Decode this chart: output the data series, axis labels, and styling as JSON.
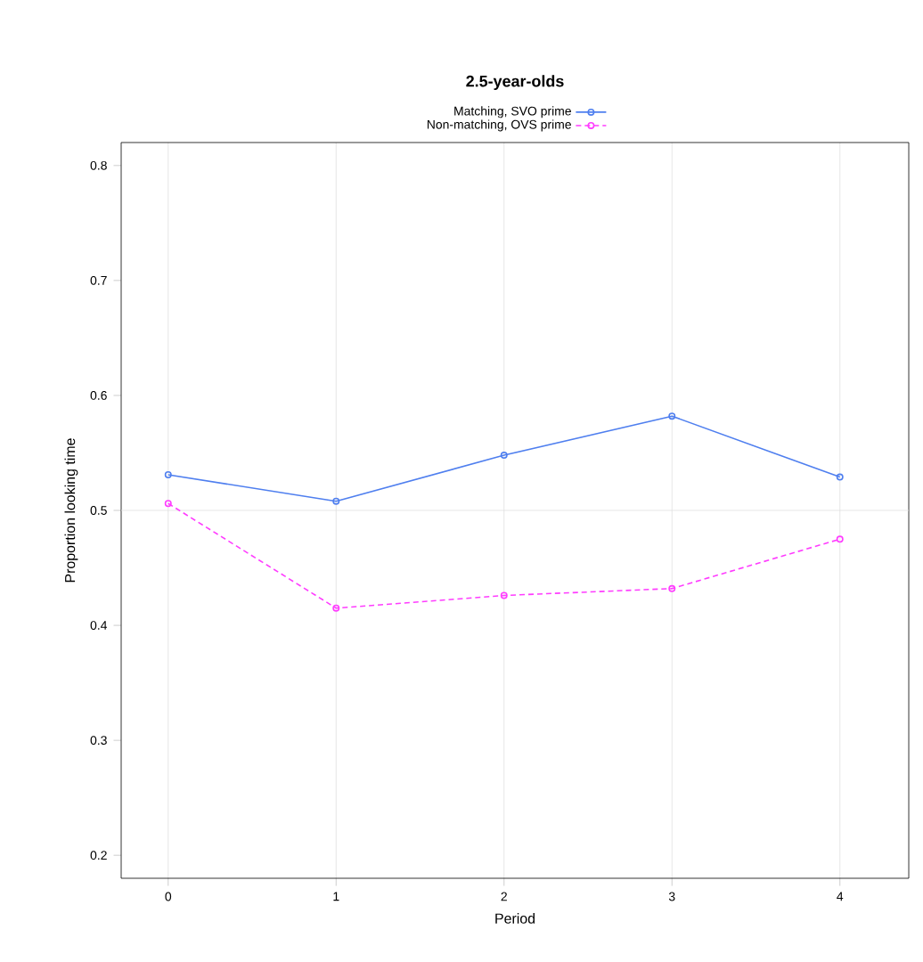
{
  "chart_data": {
    "type": "line",
    "title": "2.5-year-olds",
    "xlabel": "Period",
    "ylabel": "Proportion looking time",
    "x": [
      0,
      1,
      2,
      3,
      4
    ],
    "series": [
      {
        "name": "Matching, SVO prime",
        "color": "#4f7fef",
        "line_style": "solid",
        "values": [
          0.531,
          0.508,
          0.548,
          0.582,
          0.529
        ]
      },
      {
        "name": "Non-matching, OVS prime",
        "color": "#ff3cff",
        "line_style": "dotted",
        "values": [
          0.506,
          0.415,
          0.426,
          0.432,
          0.475
        ]
      }
    ],
    "xlim": [
      -0.28,
      4.41
    ],
    "ylim": [
      0.18,
      0.82
    ],
    "xticks": [
      0,
      1,
      2,
      3,
      4
    ],
    "yticks": [
      0.2,
      0.3,
      0.4,
      0.5,
      0.6,
      0.7,
      0.8
    ],
    "ref_lines": [
      {
        "axis": "y",
        "value": 0.5,
        "color": "#e0e0e0"
      }
    ],
    "grid": "x",
    "legend": "top",
    "marker": "circle"
  }
}
